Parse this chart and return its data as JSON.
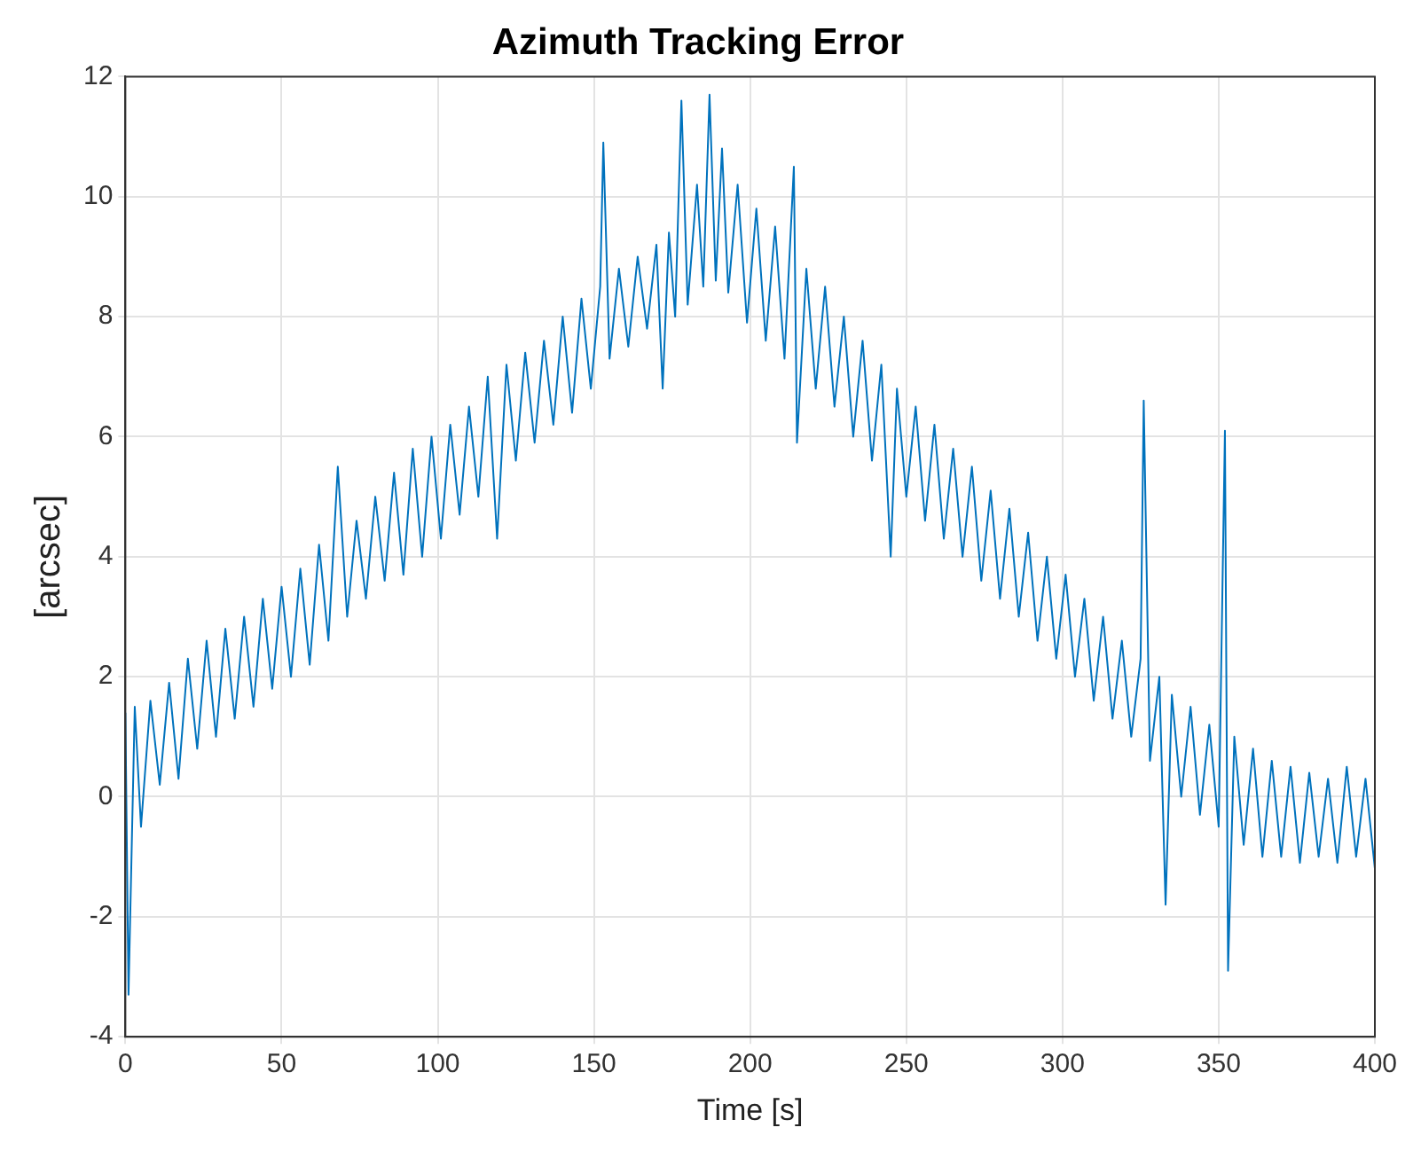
{
  "chart_data": {
    "type": "line",
    "title": "Azimuth Tracking Error",
    "xlabel": "Time [s]",
    "ylabel": "[arcsec]",
    "series": [
      {
        "color": "#0072bd",
        "x": [
          0,
          1,
          3,
          5,
          8,
          11,
          14,
          17,
          20,
          23,
          26,
          29,
          32,
          35,
          38,
          41,
          44,
          47,
          50,
          53,
          56,
          59,
          62,
          65,
          68,
          71,
          74,
          77,
          80,
          83,
          86,
          89,
          92,
          95,
          98,
          101,
          104,
          107,
          110,
          113,
          116,
          119,
          122,
          125,
          128,
          131,
          134,
          137,
          140,
          143,
          146,
          149,
          152,
          153,
          155,
          158,
          161,
          164,
          167,
          170,
          172,
          174,
          176,
          178,
          180,
          183,
          185,
          187,
          189,
          191,
          193,
          196,
          199,
          202,
          205,
          208,
          211,
          214,
          215,
          218,
          221,
          224,
          227,
          230,
          233,
          236,
          239,
          242,
          245,
          247,
          250,
          253,
          256,
          259,
          262,
          265,
          268,
          271,
          274,
          277,
          280,
          283,
          286,
          289,
          292,
          295,
          298,
          301,
          304,
          307,
          310,
          313,
          316,
          319,
          322,
          325,
          326,
          328,
          331,
          333,
          335,
          338,
          341,
          344,
          347,
          350,
          352,
          353,
          355,
          358,
          361,
          364,
          367,
          370,
          373,
          376,
          379,
          382,
          385,
          388,
          391,
          394,
          397,
          400
        ],
        "values": [
          1.4,
          -3.3,
          1.5,
          -0.5,
          1.6,
          0.2,
          1.9,
          0.3,
          2.3,
          0.8,
          2.6,
          1.0,
          2.8,
          1.3,
          3.0,
          1.5,
          3.3,
          1.8,
          3.5,
          2.0,
          3.8,
          2.2,
          4.2,
          2.6,
          5.5,
          3.0,
          4.6,
          3.3,
          5.0,
          3.6,
          5.4,
          3.7,
          5.8,
          4.0,
          6.0,
          4.3,
          6.2,
          4.7,
          6.5,
          5.0,
          7.0,
          4.3,
          7.2,
          5.6,
          7.4,
          5.9,
          7.6,
          6.2,
          8.0,
          6.4,
          8.3,
          6.8,
          8.5,
          10.9,
          7.3,
          8.8,
          7.5,
          9.0,
          7.8,
          9.2,
          6.8,
          9.4,
          8.0,
          11.6,
          8.2,
          10.2,
          8.5,
          11.7,
          8.6,
          10.8,
          8.4,
          10.2,
          7.9,
          9.8,
          7.6,
          9.5,
          7.3,
          10.5,
          5.9,
          8.8,
          6.8,
          8.5,
          6.5,
          8.0,
          6.0,
          7.6,
          5.6,
          7.2,
          4.0,
          6.8,
          5.0,
          6.5,
          4.6,
          6.2,
          4.3,
          5.8,
          4.0,
          5.5,
          3.6,
          5.1,
          3.3,
          4.8,
          3.0,
          4.4,
          2.6,
          4.0,
          2.3,
          3.7,
          2.0,
          3.3,
          1.6,
          3.0,
          1.3,
          2.6,
          1.0,
          2.3,
          6.6,
          0.6,
          2.0,
          -1.8,
          1.7,
          0.0,
          1.5,
          -0.3,
          1.2,
          -0.5,
          6.1,
          -2.9,
          1.0,
          -0.8,
          0.8,
          -1.0,
          0.6,
          -1.0,
          0.5,
          -1.1,
          0.4,
          -1.0,
          0.3,
          -1.1,
          0.5,
          -1.0,
          0.3,
          -1.2
        ]
      }
    ],
    "xlim": [
      0,
      400
    ],
    "xticks": [
      0,
      50,
      100,
      150,
      200,
      250,
      300,
      350,
      400
    ],
    "ylim": [
      -4,
      12
    ],
    "yticks": [
      -4,
      -2,
      0,
      2,
      4,
      6,
      8,
      10,
      12
    ],
    "grid": true,
    "marker": "none",
    "line_style": "solid"
  }
}
